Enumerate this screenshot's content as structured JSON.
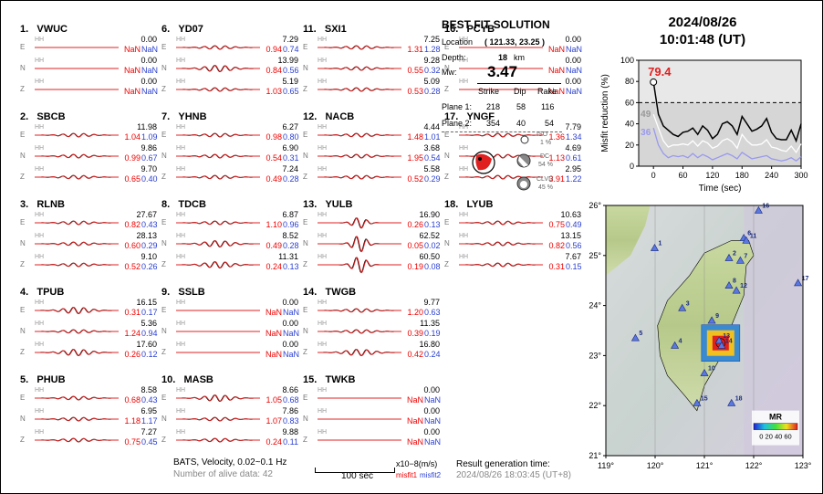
{
  "stations": [
    {
      "num": "1.",
      "code": "VWUC",
      "comps": [
        {
          "c": "E",
          "amp": "0.00",
          "m1": "NaN",
          "m2": "NaN",
          "w": 0
        },
        {
          "c": "N",
          "amp": "0.00",
          "m1": "NaN",
          "m2": "NaN",
          "w": 0
        },
        {
          "c": "Z",
          "amp": "0.00",
          "m1": "NaN",
          "m2": "NaN",
          "w": 0
        }
      ]
    },
    {
      "num": "2.",
      "code": "SBCB",
      "comps": [
        {
          "c": "E",
          "amp": "11.98",
          "m1": "1.04",
          "m2": "1.09",
          "w": 1
        },
        {
          "c": "N",
          "amp": "9.86",
          "m1": "0.99",
          "m2": "0.67",
          "w": 1
        },
        {
          "c": "Z",
          "amp": "9.70",
          "m1": "0.65",
          "m2": "0.40",
          "w": 1
        }
      ]
    },
    {
      "num": "3.",
      "code": "RLNB",
      "comps": [
        {
          "c": "E",
          "amp": "27.67",
          "m1": "0.82",
          "m2": "0.43",
          "w": 1
        },
        {
          "c": "N",
          "amp": "28.13",
          "m1": "0.60",
          "m2": "0.29",
          "w": 1
        },
        {
          "c": "Z",
          "amp": "9.10",
          "m1": "0.52",
          "m2": "0.26",
          "w": 1
        }
      ]
    },
    {
      "num": "4.",
      "code": "TPUB",
      "comps": [
        {
          "c": "E",
          "amp": "16.15",
          "m1": "0.31",
          "m2": "0.17",
          "w": 2
        },
        {
          "c": "N",
          "amp": "5.36",
          "m1": "1.24",
          "m2": "0.94",
          "w": 1
        },
        {
          "c": "Z",
          "amp": "17.60",
          "m1": "0.26",
          "m2": "0.12",
          "w": 2
        }
      ]
    },
    {
      "num": "5.",
      "code": "PHUB",
      "comps": [
        {
          "c": "E",
          "amp": "8.58",
          "m1": "0.68",
          "m2": "0.43",
          "w": 1
        },
        {
          "c": "N",
          "amp": "6.95",
          "m1": "1.18",
          "m2": "1.17",
          "w": 1
        },
        {
          "c": "Z",
          "amp": "7.27",
          "m1": "0.75",
          "m2": "0.45",
          "w": 1
        }
      ]
    },
    {
      "num": "6.",
      "code": "YD07",
      "comps": [
        {
          "c": "E",
          "amp": "7.29",
          "m1": "0.94",
          "m2": "0.74",
          "w": 1
        },
        {
          "c": "N",
          "amp": "13.99",
          "m1": "0.84",
          "m2": "0.56",
          "w": 2
        },
        {
          "c": "Z",
          "amp": "5.19",
          "m1": "1.03",
          "m2": "0.65",
          "w": 1
        }
      ]
    },
    {
      "num": "7.",
      "code": "YHNB",
      "comps": [
        {
          "c": "E",
          "amp": "6.27",
          "m1": "0.98",
          "m2": "0.80",
          "w": 1
        },
        {
          "c": "N",
          "amp": "6.90",
          "m1": "0.54",
          "m2": "0.31",
          "w": 1
        },
        {
          "c": "Z",
          "amp": "7.24",
          "m1": "0.49",
          "m2": "0.28",
          "w": 1
        }
      ]
    },
    {
      "num": "8.",
      "code": "TDCB",
      "comps": [
        {
          "c": "E",
          "amp": "6.87",
          "m1": "1.10",
          "m2": "0.96",
          "w": 1
        },
        {
          "c": "N",
          "amp": "8.52",
          "m1": "0.49",
          "m2": "0.28",
          "w": 2
        },
        {
          "c": "Z",
          "amp": "11.31",
          "m1": "0.24",
          "m2": "0.13",
          "w": 2
        }
      ]
    },
    {
      "num": "9.",
      "code": "SSLB",
      "comps": [
        {
          "c": "E",
          "amp": "0.00",
          "m1": "NaN",
          "m2": "NaN",
          "w": 0
        },
        {
          "c": "N",
          "amp": "0.00",
          "m1": "NaN",
          "m2": "NaN",
          "w": 0
        },
        {
          "c": "Z",
          "amp": "0.00",
          "m1": "NaN",
          "m2": "NaN",
          "w": 0
        }
      ]
    },
    {
      "num": "10.",
      "code": "MASB",
      "comps": [
        {
          "c": "E",
          "amp": "8.66",
          "m1": "1.05",
          "m2": "0.68",
          "w": 2
        },
        {
          "c": "N",
          "amp": "7.86",
          "m1": "1.07",
          "m2": "0.83",
          "w": 1
        },
        {
          "c": "Z",
          "amp": "9.88",
          "m1": "0.24",
          "m2": "0.11",
          "w": 1
        }
      ]
    },
    {
      "num": "11.",
      "code": "SXI1",
      "comps": [
        {
          "c": "E",
          "amp": "7.25",
          "m1": "1.31",
          "m2": "1.28",
          "w": 1
        },
        {
          "c": "N",
          "amp": "9.28",
          "m1": "0.55",
          "m2": "0.32",
          "w": 1
        },
        {
          "c": "Z",
          "amp": "5.09",
          "m1": "0.53",
          "m2": "0.28",
          "w": 1
        }
      ]
    },
    {
      "num": "12.",
      "code": "NACB",
      "comps": [
        {
          "c": "E",
          "amp": "4.44",
          "m1": "1.48",
          "m2": "1.01",
          "w": 1
        },
        {
          "c": "N",
          "amp": "3.68",
          "m1": "1.95",
          "m2": "0.54",
          "w": 1
        },
        {
          "c": "Z",
          "amp": "5.58",
          "m1": "0.52",
          "m2": "0.29",
          "w": 1
        }
      ]
    },
    {
      "num": "13.",
      "code": "YULB",
      "comps": [
        {
          "c": "E",
          "amp": "16.90",
          "m1": "0.26",
          "m2": "0.13",
          "w": 3
        },
        {
          "c": "N",
          "amp": "62.52",
          "m1": "0.05",
          "m2": "0.02",
          "w": 4
        },
        {
          "c": "Z",
          "amp": "60.50",
          "m1": "0.19",
          "m2": "0.08",
          "w": 4
        }
      ]
    },
    {
      "num": "14.",
      "code": "TWGB",
      "comps": [
        {
          "c": "E",
          "amp": "9.77",
          "m1": "1.20",
          "m2": "0.63",
          "w": 1
        },
        {
          "c": "N",
          "amp": "11.35",
          "m1": "0.39",
          "m2": "0.19",
          "w": 1
        },
        {
          "c": "Z",
          "amp": "16.80",
          "m1": "0.42",
          "m2": "0.24",
          "w": 2
        }
      ]
    },
    {
      "num": "15.",
      "code": "TWKB",
      "comps": [
        {
          "c": "E",
          "amp": "0.00",
          "m1": "NaN",
          "m2": "NaN",
          "w": 0
        },
        {
          "c": "N",
          "amp": "0.00",
          "m1": "NaN",
          "m2": "NaN",
          "w": 0
        },
        {
          "c": "Z",
          "amp": "0.00",
          "m1": "NaN",
          "m2": "NaN",
          "w": 0
        }
      ]
    },
    {
      "num": "16.",
      "code": "PCYB",
      "comps": [
        {
          "c": "E",
          "amp": "0.00",
          "m1": "NaN",
          "m2": "NaN",
          "w": 0
        },
        {
          "c": "N",
          "amp": "0.00",
          "m1": "NaN",
          "m2": "NaN",
          "w": 0
        },
        {
          "c": "Z",
          "amp": "0.00",
          "m1": "NaN",
          "m2": "NaN",
          "w": 0
        }
      ]
    },
    {
      "num": "17.",
      "code": "YNGF",
      "comps": [
        {
          "c": "E",
          "amp": "7.79",
          "m1": "1.36",
          "m2": "1.34",
          "w": 1
        },
        {
          "c": "N",
          "amp": "4.69",
          "m1": "1.13",
          "m2": "0.61",
          "w": 1
        },
        {
          "c": "Z",
          "amp": "2.95",
          "m1": "3.91",
          "m2": "1.22",
          "w": 1
        }
      ]
    },
    {
      "num": "18.",
      "code": "LYUB",
      "comps": [
        {
          "c": "E",
          "amp": "10.63",
          "m1": "0.75",
          "m2": "0.49",
          "w": 1
        },
        {
          "c": "N",
          "amp": "13.15",
          "m1": "0.82",
          "m2": "0.56",
          "w": 1
        },
        {
          "c": "Z",
          "amp": "7.67",
          "m1": "0.31",
          "m2": "0.15",
          "w": 1
        }
      ]
    }
  ],
  "channel_label": "HH",
  "solution": {
    "heading": "BEST FIT SOLUTION",
    "location_label": "Location",
    "location_value": "( 121.33, 23.25 )",
    "depth_label": "Depth:",
    "depth_value": "18",
    "depth_unit": "km",
    "mw_label": "Mw:",
    "mw_value": "3.47",
    "headers": [
      "Strike",
      "Dip",
      "Rake"
    ],
    "planes": [
      {
        "label": "Plane 1:",
        "strike": "218",
        "dip": "58",
        "rake": "116"
      },
      {
        "label": "Plane 2:",
        "strike": "354",
        "dip": "40",
        "rake": "54"
      }
    ],
    "iso": {
      "label": "ISO",
      "pct": "1 %"
    },
    "dc": {
      "label": "DC",
      "pct": "54 %"
    },
    "clvd": {
      "label": "CLVD",
      "pct": "45 %"
    }
  },
  "date": "2024/08/26",
  "time": "10:01:48  (UT)",
  "footer": {
    "info1": "BATS, Velocity, 0.02~0.1 Hz",
    "info2": "Number of alive data: 42",
    "scale_label": "100 sec",
    "unit_label": "x10−8(m/s)",
    "misfit1": "misfit1",
    "misfit2": "misfit2",
    "result_label": "Result generation time:",
    "result_time": "2024/08/26 18:03:45  (UT+8)"
  },
  "chart_data": {
    "type": "line",
    "ylabel": "Misfit reduction (%)",
    "xlabel": "Time (sec)",
    "xlim": [
      -30,
      300
    ],
    "ylim": [
      0,
      100
    ],
    "xticks": [
      0,
      60,
      120,
      180,
      240,
      300
    ],
    "yticks": [
      0,
      20,
      40,
      60,
      80,
      100
    ],
    "ref_line": 60,
    "annotations": [
      {
        "text": "79.4",
        "color": "#e02020"
      },
      {
        "text": "49",
        "color": "#999999"
      },
      {
        "text": "36",
        "color": "#9999ee"
      }
    ],
    "series": [
      {
        "color": "#000000",
        "x": [
          0,
          10,
          20,
          30,
          40,
          50,
          60,
          70,
          80,
          90,
          100,
          110,
          120,
          130,
          140,
          150,
          160,
          170,
          180,
          190,
          200,
          210,
          220,
          230,
          240,
          250,
          260,
          270,
          280,
          290,
          300
        ],
        "values": [
          79.4,
          49,
          38,
          34,
          30,
          28,
          32,
          33,
          36,
          30,
          38,
          34,
          26,
          30,
          40,
          42,
          38,
          30,
          47,
          40,
          33,
          35,
          38,
          45,
          32,
          26,
          25,
          25,
          34,
          24,
          40
        ]
      },
      {
        "color": "#ffffff",
        "x": [
          0,
          10,
          20,
          30,
          40,
          50,
          60,
          70,
          80,
          90,
          100,
          110,
          120,
          130,
          140,
          150,
          160,
          170,
          180,
          190,
          200,
          210,
          220,
          230,
          240,
          250,
          260,
          270,
          280,
          290,
          300
        ],
        "values": [
          49,
          36,
          24,
          18,
          20,
          20,
          21,
          20,
          24,
          19,
          24,
          22,
          17,
          19,
          24,
          26,
          23,
          17,
          30,
          24,
          20,
          20,
          21,
          25,
          18,
          17,
          15,
          14,
          19,
          13,
          21
        ]
      },
      {
        "color": "#9999ee",
        "x": [
          0,
          10,
          20,
          30,
          40,
          50,
          60,
          70,
          80,
          90,
          100,
          110,
          120,
          130,
          140,
          150,
          160,
          170,
          180,
          190,
          200,
          210,
          220,
          230,
          240,
          250,
          260,
          270,
          280,
          290,
          300
        ],
        "values": [
          36,
          20,
          12,
          8,
          10,
          9,
          10,
          8,
          12,
          8,
          11,
          9,
          6,
          8,
          10,
          12,
          10,
          7,
          13,
          10,
          7,
          8,
          9,
          10,
          7,
          6,
          5,
          6,
          8,
          5,
          9
        ]
      }
    ]
  },
  "map": {
    "lat_ticks": [
      "26°",
      "25°",
      "24°",
      "23°",
      "22°",
      "21°"
    ],
    "lon_ticks": [
      "119°",
      "120°",
      "121°",
      "122°",
      "123°"
    ],
    "legend_title": "MR",
    "legend_ticks": "0 20 40 60",
    "stations": [
      {
        "n": "1",
        "lon": 119.99,
        "lat": 25.15
      },
      {
        "n": "2",
        "lon": 121.5,
        "lat": 24.95
      },
      {
        "n": "3",
        "lon": 120.55,
        "lat": 23.95
      },
      {
        "n": "4",
        "lon": 120.4,
        "lat": 23.2
      },
      {
        "n": "5",
        "lon": 119.6,
        "lat": 23.35
      },
      {
        "n": "6",
        "lon": 121.8,
        "lat": 25.35
      },
      {
        "n": "7",
        "lon": 121.73,
        "lat": 24.9
      },
      {
        "n": "8",
        "lon": 121.5,
        "lat": 24.4
      },
      {
        "n": "9",
        "lon": 121.15,
        "lat": 23.7
      },
      {
        "n": "10",
        "lon": 121.0,
        "lat": 22.65
      },
      {
        "n": "11",
        "lon": 121.85,
        "lat": 25.3
      },
      {
        "n": "12",
        "lon": 121.65,
        "lat": 24.3
      },
      {
        "n": "13",
        "lon": 121.3,
        "lat": 23.3
      },
      {
        "n": "14",
        "lon": 121.35,
        "lat": 23.2
      },
      {
        "n": "15",
        "lon": 120.85,
        "lat": 22.05
      },
      {
        "n": "16",
        "lon": 122.1,
        "lat": 25.9
      },
      {
        "n": "17",
        "lon": 122.9,
        "lat": 24.45
      },
      {
        "n": "18",
        "lon": 121.55,
        "lat": 22.05
      }
    ]
  }
}
